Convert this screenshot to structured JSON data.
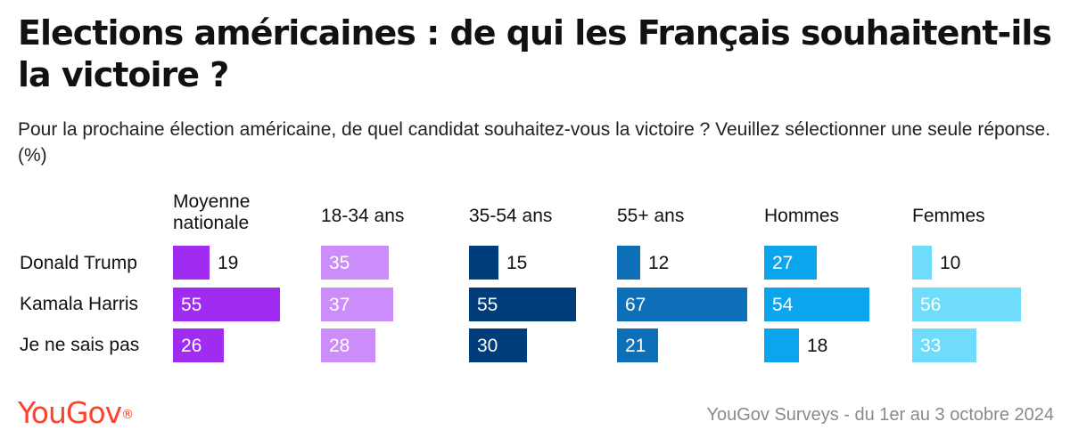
{
  "title": "Elections américaines : de qui les Français souhaitent-ils la victoire ?",
  "subtitle": "Pour la prochaine élection américaine, de quel candidat souhaitez-vous la victoire ? Veuillez sélectionner une seule réponse. (%)",
  "chart_data": {
    "type": "bar",
    "orientation": "horizontal",
    "categories": [
      "Donald Trump",
      "Kamala Harris",
      "Je ne sais pas"
    ],
    "series": [
      {
        "name": "Moyenne nationale",
        "values": [
          19,
          55,
          26
        ],
        "color": "#a02cf2"
      },
      {
        "name": "18-34 ans",
        "values": [
          35,
          37,
          28
        ],
        "color": "#cc8dfa"
      },
      {
        "name": "35-54 ans",
        "values": [
          15,
          55,
          30
        ],
        "color": "#003d7a"
      },
      {
        "name": "55+ ans",
        "values": [
          12,
          67,
          21
        ],
        "color": "#0e6fb9"
      },
      {
        "name": "Hommes",
        "values": [
          27,
          54,
          18
        ],
        "color": "#0aa5ec"
      },
      {
        "name": "Femmes",
        "values": [
          10,
          56,
          33
        ],
        "color": "#6edcfa"
      }
    ],
    "value_label_color_inside": "#ffffff",
    "value_label_color_outside": "#111111"
  },
  "footer": {
    "logo": "YouGov",
    "source": "YouGov Surveys - du 1er au 3 octobre 2024"
  }
}
